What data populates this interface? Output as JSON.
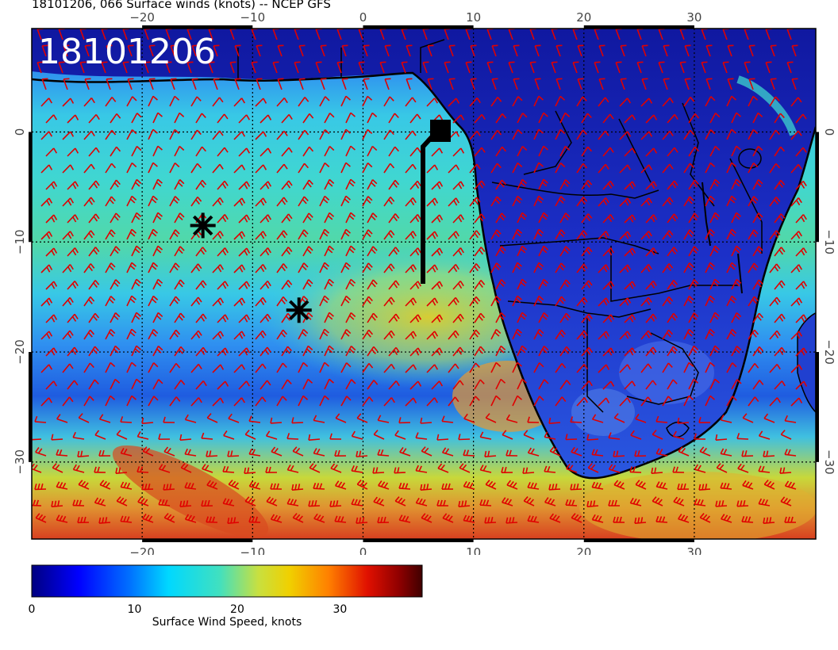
{
  "header": {
    "title": "18101206, 066 Surface winds (knots) -- NCEP GFS"
  },
  "map": {
    "date_stamp": "18101206",
    "x_tick_labels": [
      "−20",
      "−10",
      "0",
      "10",
      "20",
      "30"
    ],
    "y_tick_labels": [
      "0",
      "−10",
      "−20",
      "−30"
    ],
    "colors": {
      "wind_barb": "#e00000",
      "coast": "#000000",
      "grid": "#000000",
      "date_stamp_text": "#ffffff"
    },
    "markers": [
      {
        "name": "asterisk-1",
        "lon": -14.5,
        "lat": -8.5
      },
      {
        "name": "asterisk-2",
        "lon": -5.8,
        "lat": -16.2
      }
    ]
  },
  "colorbar": {
    "label": "Surface Wind Speed, knots",
    "ticks": [
      "0",
      "10",
      "20",
      "30"
    ],
    "colors": [
      "#000080",
      "#0000ff",
      "#0080ff",
      "#00ffff",
      "#40e0d0",
      "#c0ff40",
      "#ffff00",
      "#ffb000",
      "#ff6000",
      "#e00000",
      "#800000",
      "#400000"
    ]
  }
}
